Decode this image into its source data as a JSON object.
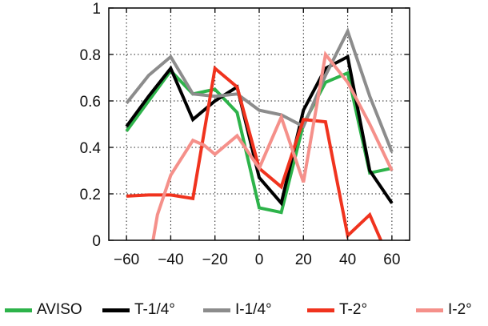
{
  "chart_data": {
    "type": "line",
    "title": "",
    "xlabel": "",
    "ylabel": "",
    "xlim": [
      -68,
      68
    ],
    "ylim": [
      0,
      1
    ],
    "x_ticks": [
      -60,
      -40,
      -20,
      0,
      20,
      40,
      60
    ],
    "x_tick_labels": [
      "−60",
      "−40",
      "−20",
      "0",
      "20",
      "40",
      "60"
    ],
    "y_ticks": [
      0,
      0.2,
      0.4,
      0.6,
      0.8,
      1
    ],
    "y_tick_labels": [
      "0",
      "0.2",
      "0.4",
      "0.6",
      "0.8",
      "1"
    ],
    "grid": true,
    "legend_position": "bottom",
    "series": [
      {
        "name": "AVISO",
        "color": "#2db34a",
        "x": [
          -60,
          -50,
          -40,
          -30,
          -20,
          -10,
          0,
          10,
          20,
          30,
          40,
          50,
          60
        ],
        "y": [
          0.47,
          0.6,
          0.73,
          0.63,
          0.65,
          0.55,
          0.14,
          0.12,
          0.5,
          0.68,
          0.72,
          0.29,
          0.31
        ]
      },
      {
        "name": "T-1/4°",
        "color": "#000000",
        "x": [
          -60,
          -50,
          -40,
          -30,
          -20,
          -10,
          0,
          10,
          20,
          30,
          40,
          50,
          60
        ],
        "y": [
          0.49,
          0.62,
          0.74,
          0.52,
          0.6,
          0.66,
          0.27,
          0.16,
          0.56,
          0.74,
          0.79,
          0.3,
          0.16
        ]
      },
      {
        "name": "I-1/4°",
        "color": "#8c8c8c",
        "x": [
          -60,
          -50,
          -40,
          -30,
          -20,
          -10,
          0,
          10,
          20,
          30,
          40,
          50,
          60
        ],
        "y": [
          0.59,
          0.71,
          0.79,
          0.63,
          0.62,
          0.63,
          0.56,
          0.54,
          0.49,
          0.71,
          0.9,
          0.62,
          0.38
        ]
      },
      {
        "name": "T-2°",
        "color": "#f0331e",
        "x": [
          -60,
          -50,
          -40,
          -30,
          -20,
          -10,
          0,
          10,
          20,
          30,
          40,
          50,
          55
        ],
        "y": [
          0.19,
          0.195,
          0.195,
          0.18,
          0.74,
          0.66,
          0.31,
          0.23,
          0.52,
          0.51,
          0.02,
          0.11,
          0.0
        ]
      },
      {
        "name": "I-2°",
        "color": "#f5908a",
        "x": [
          -48,
          -46,
          -40,
          -30,
          -25,
          -20,
          -10,
          0,
          10,
          20,
          30,
          40,
          50,
          60
        ],
        "y": [
          0.0,
          0.11,
          0.28,
          0.43,
          0.41,
          0.37,
          0.45,
          0.31,
          0.53,
          0.25,
          0.8,
          0.68,
          0.5,
          0.3
        ]
      }
    ]
  }
}
